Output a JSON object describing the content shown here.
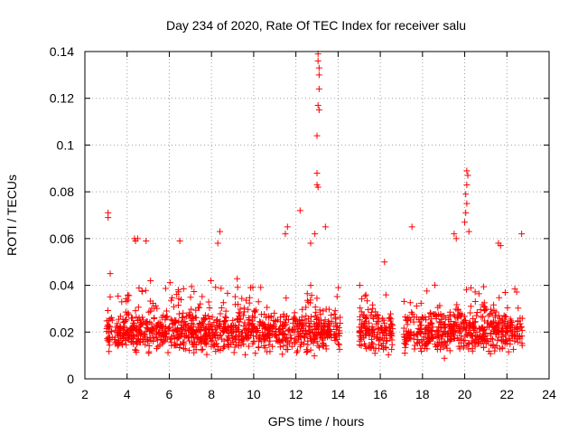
{
  "chart_data": {
    "type": "scatter",
    "title": "Day 234 of 2020, Rate Of TEC Index for receiver salu",
    "xlabel": "GPS time / hours",
    "ylabel": "ROTI / TECUs",
    "xlim": [
      2,
      24
    ],
    "ylim": [
      0,
      0.14
    ],
    "xticks": [
      2,
      4,
      6,
      8,
      10,
      12,
      14,
      16,
      18,
      20,
      22,
      24
    ],
    "yticks": [
      0,
      0.02,
      0.04,
      0.06,
      0.08,
      0.1,
      0.12,
      0.14
    ],
    "xtick_labels": [
      "2",
      "4",
      "6",
      "8",
      "10",
      "12",
      "14",
      "16",
      "18",
      "20",
      "22",
      "24"
    ],
    "ytick_labels": [
      "0",
      "0.02",
      "0.04",
      "0.06",
      "0.08",
      "0.1",
      "0.12",
      "0.14"
    ],
    "grid": true,
    "marker": "+",
    "color": "#ff0000",
    "observation_segments": [
      {
        "start": 3.0,
        "end": 3.3
      },
      {
        "start": 3.4,
        "end": 13.7
      },
      {
        "start": 13.8,
        "end": 14.1
      },
      {
        "start": 15.0,
        "end": 16.6
      },
      {
        "start": 17.1,
        "end": 22.75
      }
    ],
    "notable_points": [
      {
        "x": 3.1,
        "y": 0.071
      },
      {
        "x": 3.1,
        "y": 0.069
      },
      {
        "x": 3.2,
        "y": 0.045
      },
      {
        "x": 4.35,
        "y": 0.06
      },
      {
        "x": 4.4,
        "y": 0.059
      },
      {
        "x": 4.5,
        "y": 0.06
      },
      {
        "x": 4.9,
        "y": 0.059
      },
      {
        "x": 6.5,
        "y": 0.059
      },
      {
        "x": 8.4,
        "y": 0.063
      },
      {
        "x": 8.3,
        "y": 0.058
      },
      {
        "x": 11.6,
        "y": 0.065
      },
      {
        "x": 11.5,
        "y": 0.062
      },
      {
        "x": 12.2,
        "y": 0.072
      },
      {
        "x": 12.7,
        "y": 0.058
      },
      {
        "x": 12.9,
        "y": 0.062
      },
      {
        "x": 13.05,
        "y": 0.139
      },
      {
        "x": 13.05,
        "y": 0.136
      },
      {
        "x": 13.1,
        "y": 0.133
      },
      {
        "x": 13.1,
        "y": 0.13
      },
      {
        "x": 13.1,
        "y": 0.124
      },
      {
        "x": 13.05,
        "y": 0.117
      },
      {
        "x": 13.1,
        "y": 0.115
      },
      {
        "x": 13.0,
        "y": 0.104
      },
      {
        "x": 13.0,
        "y": 0.088
      },
      {
        "x": 13.0,
        "y": 0.083
      },
      {
        "x": 13.05,
        "y": 0.082
      },
      {
        "x": 13.4,
        "y": 0.065
      },
      {
        "x": 17.5,
        "y": 0.065
      },
      {
        "x": 16.2,
        "y": 0.05
      },
      {
        "x": 19.5,
        "y": 0.062
      },
      {
        "x": 19.6,
        "y": 0.06
      },
      {
        "x": 20.1,
        "y": 0.089
      },
      {
        "x": 20.15,
        "y": 0.087
      },
      {
        "x": 20.1,
        "y": 0.083
      },
      {
        "x": 20.05,
        "y": 0.079
      },
      {
        "x": 20.1,
        "y": 0.075
      },
      {
        "x": 20.05,
        "y": 0.071
      },
      {
        "x": 20.0,
        "y": 0.067
      },
      {
        "x": 20.2,
        "y": 0.063
      },
      {
        "x": 21.6,
        "y": 0.058
      },
      {
        "x": 21.7,
        "y": 0.057
      },
      {
        "x": 22.7,
        "y": 0.062
      }
    ],
    "bulk_distribution": {
      "y_typical_min": 0.008,
      "y_typical_max": 0.04,
      "y_center": 0.02,
      "density_points_per_hour": 95
    }
  }
}
